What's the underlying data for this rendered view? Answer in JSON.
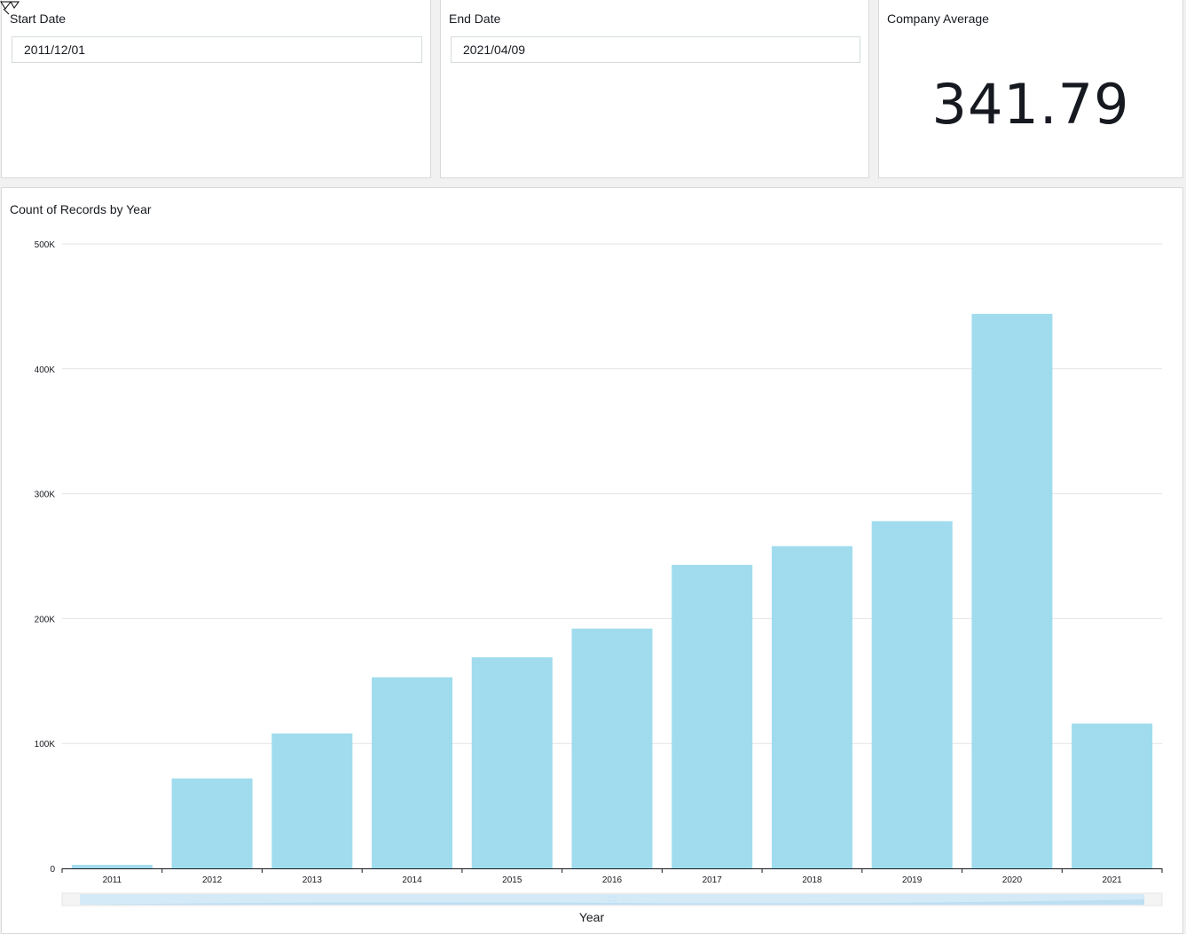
{
  "filters": {
    "start": {
      "label": "Start Date",
      "value": "2011/12/01"
    },
    "end": {
      "label": "End Date",
      "value": "2021/04/09"
    }
  },
  "kpi": {
    "label": "Company Average",
    "value": "341.79"
  },
  "chart": {
    "title": "Count of Records by Year",
    "xlabel": "Year"
  },
  "colors": {
    "bar": "#a0dcee",
    "grid": "#e3e3e3",
    "axis": "#16191f",
    "scroll_track": "#f4f4f4",
    "scroll_thumb": "#d4eaf7"
  },
  "chart_data": {
    "type": "bar",
    "title": "Count of Records by Year",
    "xlabel": "Year",
    "ylabel": "",
    "categories": [
      "2011",
      "2012",
      "2013",
      "2014",
      "2015",
      "2016",
      "2017",
      "2018",
      "2019",
      "2020",
      "2021"
    ],
    "values": [
      2800,
      72000,
      108000,
      153000,
      169000,
      192000,
      243000,
      258000,
      278000,
      444000,
      116000
    ],
    "ylim": [
      0,
      500000
    ],
    "yticks": [
      0,
      100000,
      200000,
      300000,
      400000,
      500000
    ],
    "ytick_labels": [
      "0",
      "100K",
      "200K",
      "300K",
      "400K",
      "500K"
    ],
    "grid": true,
    "legend": "none"
  }
}
